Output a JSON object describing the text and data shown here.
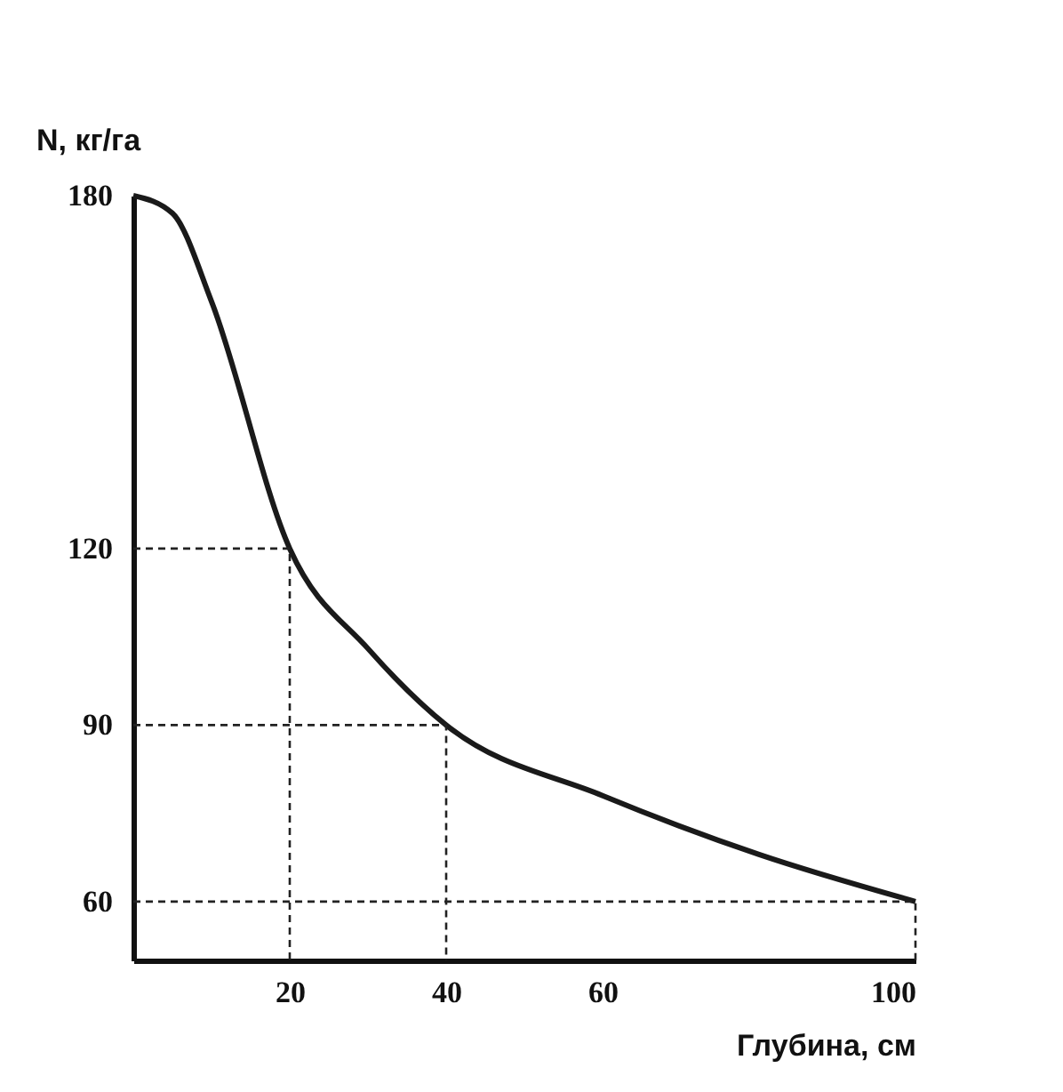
{
  "chart_data": {
    "type": "line",
    "xlabel": "Глубина, см",
    "ylabel": "N, кг/га",
    "series": [
      {
        "color": "#1a1a1a",
        "x": [
          0,
          5,
          10,
          20,
          30,
          40,
          60,
          80,
          100
        ],
        "values": [
          180,
          177,
          162,
          120,
          103,
          90,
          78,
          68,
          60
        ]
      },
      {
        "color": "#222222",
        "line_style": "dashed",
        "x": [
          0,
          20,
          20
        ],
        "values": [
          120,
          120,
          50
        ]
      },
      {
        "color": "#222222",
        "line_style": "dashed",
        "x": [
          0,
          40,
          40
        ],
        "values": [
          90,
          90,
          50
        ]
      },
      {
        "color": "#222222",
        "line_style": "dashed",
        "x": [
          0,
          100,
          100
        ],
        "values": [
          60,
          60,
          50
        ]
      }
    ],
    "xlim": [
      0,
      100
    ],
    "xticks": [
      20,
      40,
      60,
      100
    ],
    "ylim": [
      50,
      180
    ],
    "yticks": [
      60,
      90,
      120,
      180
    ],
    "marker": "none",
    "line_style": "solid"
  }
}
